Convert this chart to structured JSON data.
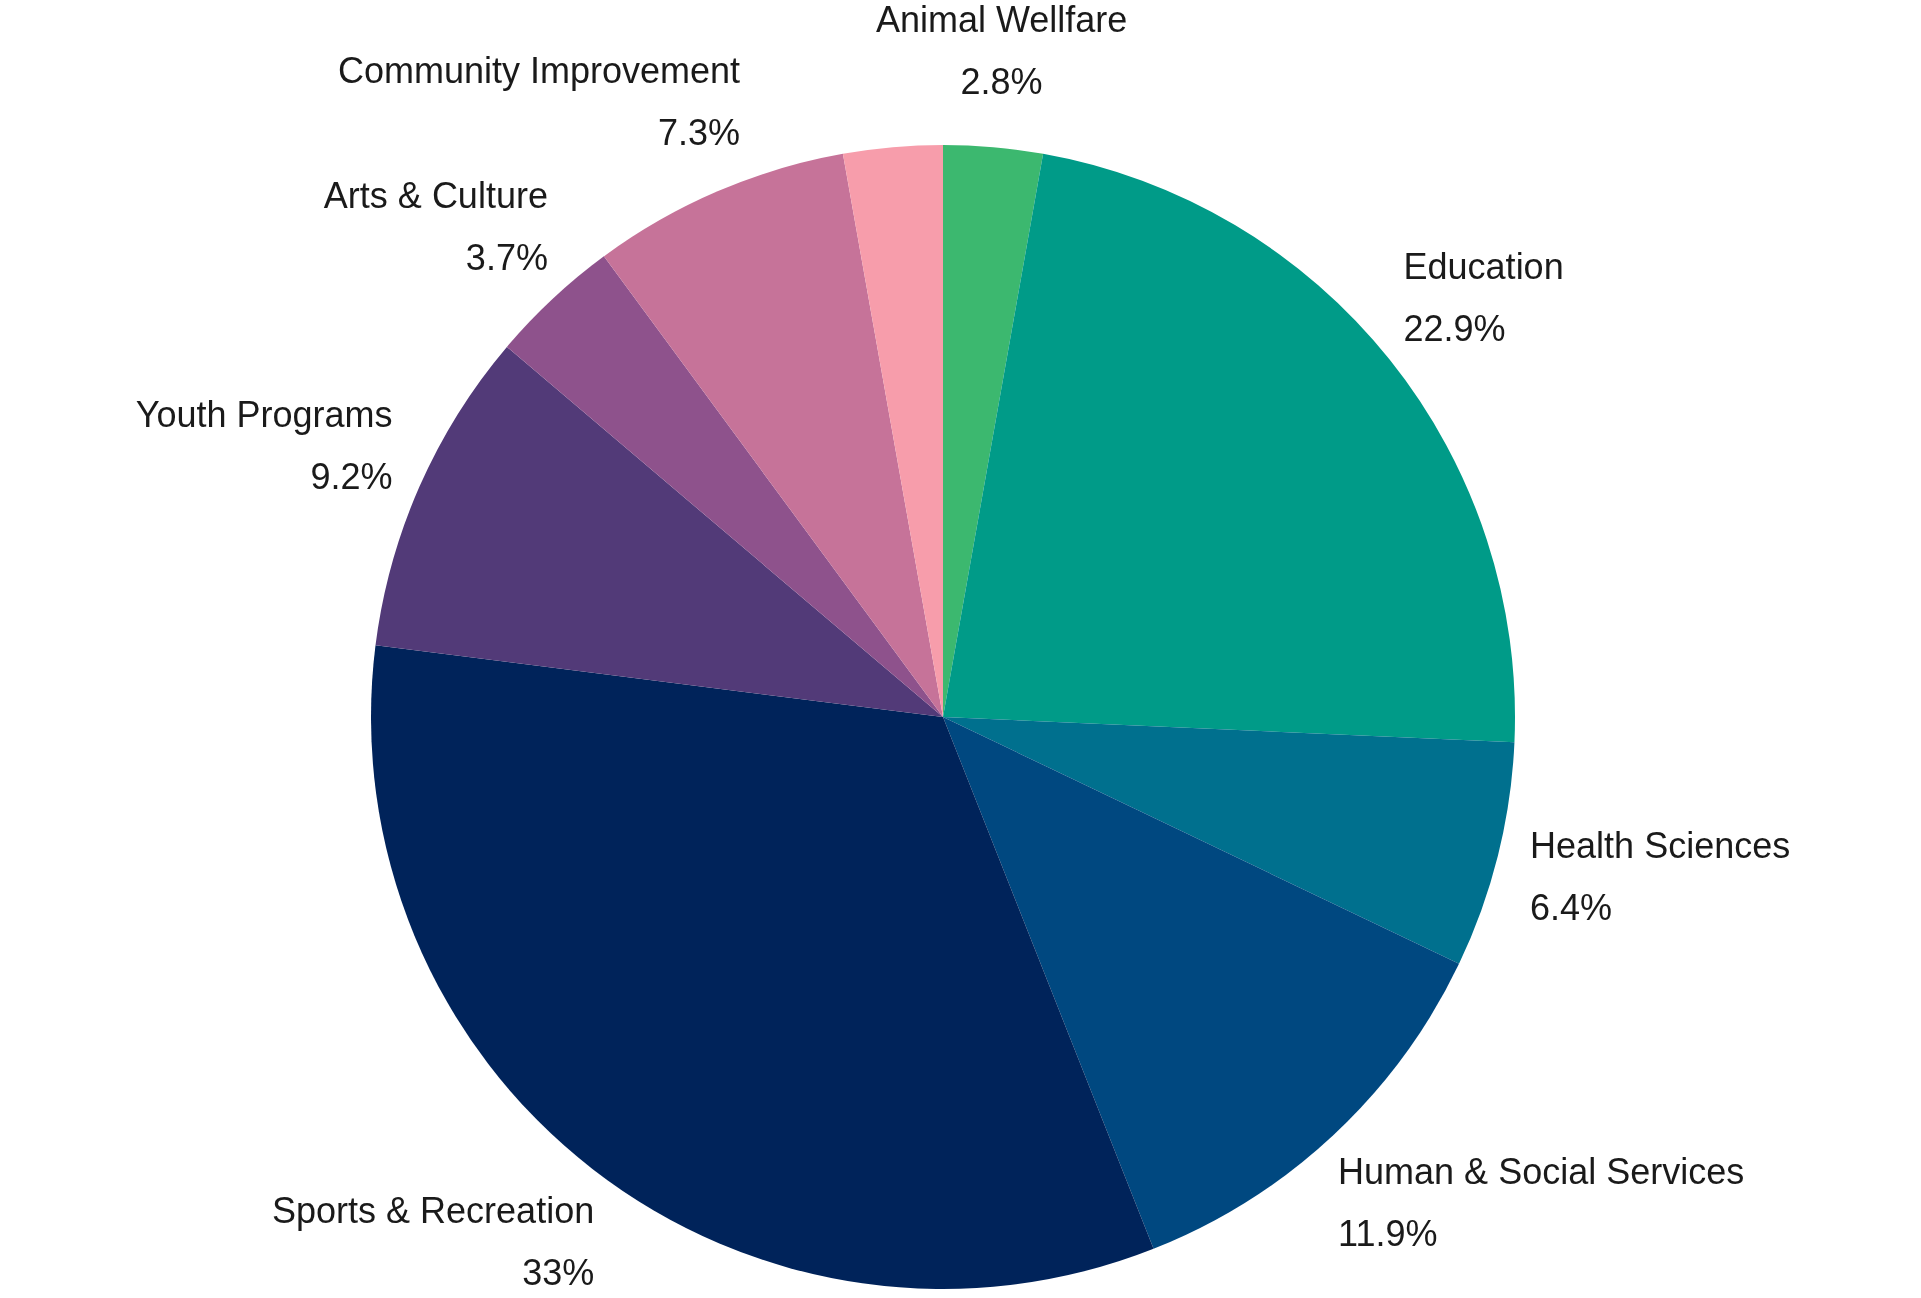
{
  "chart_data": {
    "type": "pie",
    "categories": [
      "Animal Wellfare",
      "Education",
      "Health Sciences",
      "Human & Social Services",
      "Sports & Recreation",
      "Youth Programs",
      "Arts & Culture",
      "Community Improvement",
      null
    ],
    "values": [
      2.8,
      22.9,
      6.4,
      11.9,
      33,
      9.2,
      3.7,
      7.3,
      2.8
    ],
    "value_labels": [
      "2.8%",
      "22.9%",
      "6.4%",
      "11.9%",
      "33%",
      "9.2%",
      "3.7%",
      "7.3%",
      null
    ],
    "colors": [
      "#3cb86f",
      "#009b88",
      "#00708e",
      "#004880",
      "#00235a",
      "#523a78",
      "#8e528c",
      "#c67399",
      "#f79dab"
    ],
    "legend": false
  }
}
